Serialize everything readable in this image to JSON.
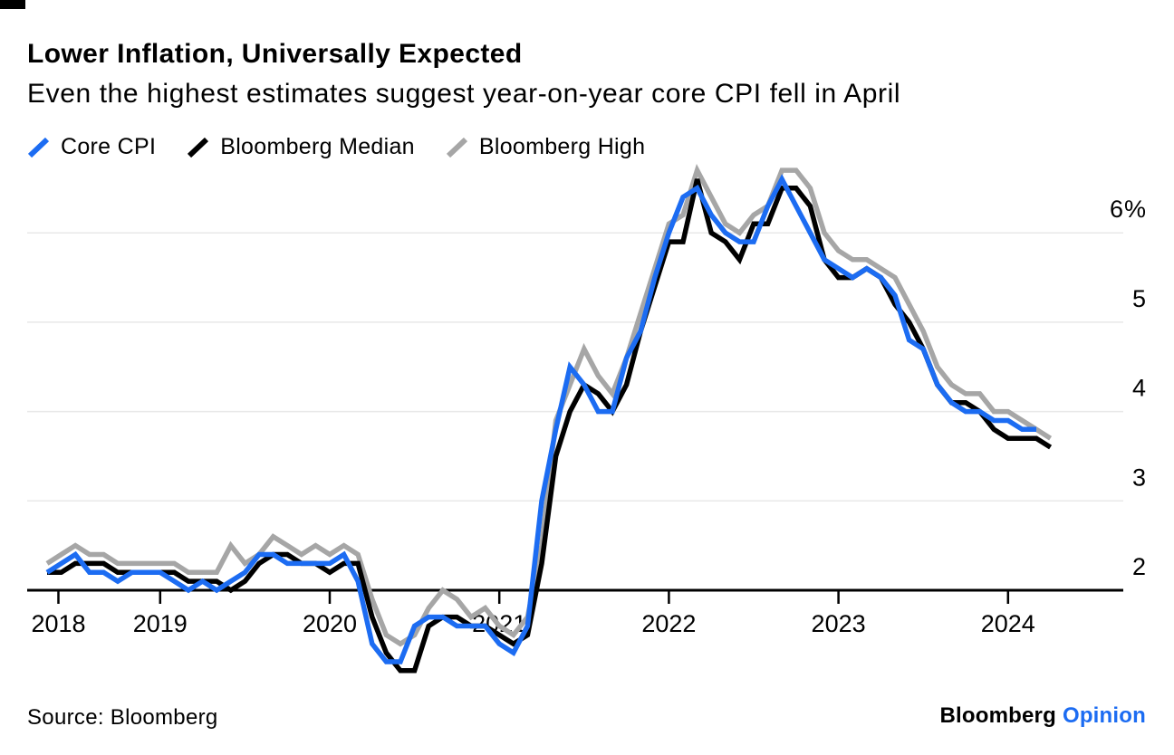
{
  "chart_data": {
    "type": "line",
    "title": "Lower Inflation, Universally Expected",
    "subtitle": "Even the highest estimates suggest year-on-year core CPI fell in April",
    "frequency": "monthly",
    "x_start": "2018-05",
    "x_end": "2024-04",
    "x_tick_labels": [
      "2018",
      "2019",
      "2020",
      "2021",
      "2022",
      "2023",
      "2024"
    ],
    "y_ticks": [
      2,
      3,
      4,
      5,
      6
    ],
    "y_tick_labels": [
      "2",
      "3",
      "4",
      "5",
      "6%"
    ],
    "ylim": [
      1.0,
      6.9
    ],
    "baseline_value": 2,
    "grid": "horizontal",
    "legend_position": "top",
    "unit": "percent, year-on-year",
    "series": [
      {
        "name": "Core CPI",
        "color": "#1c6cf2",
        "values": [
          2.2,
          2.3,
          2.4,
          2.2,
          2.2,
          2.1,
          2.2,
          2.2,
          2.2,
          2.1,
          2.0,
          2.1,
          2.0,
          2.1,
          2.2,
          2.4,
          2.4,
          2.3,
          2.3,
          2.3,
          2.3,
          2.4,
          2.1,
          1.4,
          1.2,
          1.2,
          1.6,
          1.7,
          1.7,
          1.6,
          1.6,
          1.6,
          1.4,
          1.3,
          1.6,
          3.0,
          3.8,
          4.5,
          4.3,
          4.0,
          4.0,
          4.6,
          4.9,
          5.5,
          6.0,
          6.4,
          6.5,
          6.2,
          6.0,
          5.9,
          5.9,
          6.3,
          6.6,
          6.3,
          6.0,
          5.7,
          5.6,
          5.5,
          5.6,
          5.5,
          5.3,
          4.8,
          4.7,
          4.3,
          4.1,
          4.0,
          4.0,
          3.9,
          3.9,
          3.8,
          3.8,
          null
        ]
      },
      {
        "name": "Bloomberg Median",
        "color": "#000000",
        "values": [
          2.2,
          2.2,
          2.3,
          2.3,
          2.3,
          2.2,
          2.2,
          2.2,
          2.2,
          2.2,
          2.1,
          2.1,
          2.1,
          2.0,
          2.1,
          2.3,
          2.4,
          2.4,
          2.3,
          2.3,
          2.2,
          2.3,
          2.3,
          1.7,
          1.3,
          1.1,
          1.1,
          1.6,
          1.7,
          1.7,
          1.6,
          1.6,
          1.5,
          1.4,
          1.5,
          2.3,
          3.5,
          4.0,
          4.3,
          4.2,
          4.0,
          4.3,
          4.9,
          5.4,
          5.9,
          5.9,
          6.6,
          6.0,
          5.9,
          5.7,
          6.1,
          6.1,
          6.5,
          6.5,
          6.3,
          5.7,
          5.5,
          5.5,
          5.6,
          5.5,
          5.2,
          5.0,
          4.7,
          4.3,
          4.1,
          4.1,
          4.0,
          3.8,
          3.7,
          3.7,
          3.7,
          3.6
        ]
      },
      {
        "name": "Bloomberg High",
        "color": "#a6a6a6",
        "values": [
          2.3,
          2.4,
          2.5,
          2.4,
          2.4,
          2.3,
          2.3,
          2.3,
          2.3,
          2.3,
          2.2,
          2.2,
          2.2,
          2.5,
          2.3,
          2.4,
          2.6,
          2.5,
          2.4,
          2.5,
          2.4,
          2.5,
          2.4,
          1.9,
          1.5,
          1.4,
          1.5,
          1.8,
          2.0,
          1.9,
          1.7,
          1.8,
          1.6,
          1.5,
          1.7,
          2.5,
          3.9,
          4.3,
          4.7,
          4.4,
          4.2,
          4.6,
          5.1,
          5.6,
          6.1,
          6.2,
          6.7,
          6.4,
          6.1,
          6.0,
          6.2,
          6.3,
          6.7,
          6.7,
          6.5,
          6.0,
          5.8,
          5.7,
          5.7,
          5.6,
          5.5,
          5.2,
          4.9,
          4.5,
          4.3,
          4.2,
          4.2,
          4.0,
          4.0,
          3.9,
          3.8,
          3.7
        ]
      }
    ]
  },
  "footer": {
    "source": "Source: Bloomberg",
    "brand": "Bloomberg",
    "brand_suffix": "Opinion",
    "brand_suffix_color": "#1c6cf2"
  }
}
